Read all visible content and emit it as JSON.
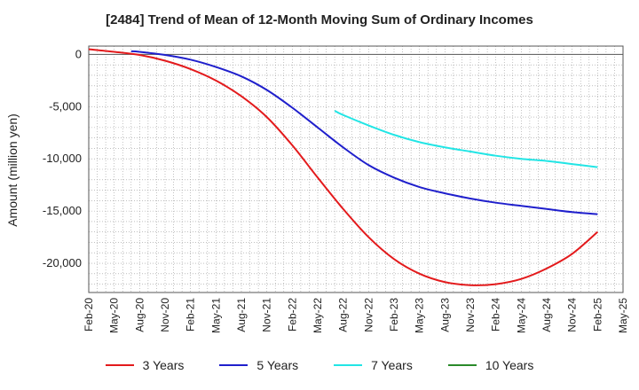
{
  "chart_data": {
    "type": "line",
    "title": "[2484]  Trend of Mean of 12-Month Moving Sum of Ordinary Incomes",
    "xlabel": "",
    "ylabel": "Amount (million yen)",
    "ylim": [
      -22800,
      800
    ],
    "yticks": [
      0,
      -5000,
      -10000,
      -15000,
      -20000
    ],
    "ytick_labels": [
      "0",
      "-5,000",
      "-10,000",
      "-15,000",
      "-20,000"
    ],
    "xtick_labels": [
      "Feb-20",
      "May-20",
      "Aug-20",
      "Nov-20",
      "Feb-21",
      "May-21",
      "Aug-21",
      "Nov-21",
      "Feb-22",
      "May-22",
      "Aug-22",
      "Nov-22",
      "Feb-23",
      "May-23",
      "Aug-23",
      "Nov-23",
      "Feb-24",
      "May-24",
      "Aug-24",
      "Nov-24",
      "Feb-25",
      "May-25"
    ],
    "grid": true,
    "legend_position": "bottom",
    "series": [
      {
        "name": "3 Years",
        "color": "#e31a1c",
        "x": [
          "Feb-20",
          "May-20",
          "Aug-20",
          "Nov-20",
          "Feb-21",
          "May-21",
          "Aug-21",
          "Nov-21",
          "Feb-22",
          "May-22",
          "Aug-22",
          "Nov-22",
          "Feb-23",
          "May-23",
          "Aug-23",
          "Nov-23",
          "Feb-24",
          "May-24",
          "Aug-24",
          "Nov-24",
          "Feb-25"
        ],
        "values": [
          500,
          250,
          -50,
          -600,
          -1400,
          -2500,
          -4000,
          -6000,
          -8700,
          -11800,
          -14800,
          -17500,
          -19600,
          -21000,
          -21800,
          -22100,
          -22000,
          -21500,
          -20500,
          -19100,
          -17000
        ]
      },
      {
        "name": "5 Years",
        "color": "#1f1fcc",
        "x": [
          "Jul-20",
          "Aug-20",
          "Nov-20",
          "Feb-21",
          "May-21",
          "Aug-21",
          "Nov-21",
          "Feb-22",
          "May-22",
          "Aug-22",
          "Nov-22",
          "Feb-23",
          "May-23",
          "Aug-23",
          "Nov-23",
          "Feb-24",
          "May-24",
          "Aug-24",
          "Nov-24",
          "Feb-25"
        ],
        "values": [
          300,
          250,
          -50,
          -500,
          -1200,
          -2100,
          -3400,
          -5100,
          -7000,
          -8900,
          -10600,
          -11800,
          -12700,
          -13300,
          -13800,
          -14200,
          -14500,
          -14800,
          -15100,
          -15300
        ]
      },
      {
        "name": "7 Years",
        "color": "#22e5e5",
        "x": [
          "Jul-22",
          "Aug-22",
          "Nov-22",
          "Feb-23",
          "May-23",
          "Aug-23",
          "Nov-23",
          "Feb-24",
          "May-24",
          "Aug-24",
          "Nov-24",
          "Feb-25"
        ],
        "values": [
          -5400,
          -5800,
          -6800,
          -7700,
          -8400,
          -8900,
          -9300,
          -9700,
          -10000,
          -10200,
          -10500,
          -10800
        ]
      },
      {
        "name": "10 Years",
        "color": "#2a8a2a",
        "x": [],
        "values": []
      }
    ]
  }
}
